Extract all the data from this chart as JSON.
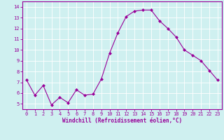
{
  "x": [
    0,
    1,
    2,
    3,
    4,
    5,
    6,
    7,
    8,
    9,
    10,
    11,
    12,
    13,
    14,
    15,
    16,
    17,
    18,
    19,
    20,
    21,
    22,
    23
  ],
  "y": [
    7.2,
    5.8,
    6.7,
    4.9,
    5.6,
    5.1,
    6.3,
    5.8,
    5.9,
    7.3,
    9.7,
    11.6,
    13.1,
    13.6,
    13.7,
    13.7,
    12.7,
    12.0,
    11.2,
    10.0,
    9.5,
    9.0,
    8.1,
    7.2
  ],
  "line_color": "#990099",
  "marker": "D",
  "marker_size": 2.0,
  "xlabel": "Windchill (Refroidissement éolien,°C)",
  "xlabel_color": "#990099",
  "bg_color": "#cff0f0",
  "grid_color": "#ffffff",
  "tick_color": "#990099",
  "spine_color": "#990099",
  "xlim": [
    -0.5,
    23.5
  ],
  "ylim": [
    4.5,
    14.5
  ],
  "yticks": [
    5,
    6,
    7,
    8,
    9,
    10,
    11,
    12,
    13,
    14
  ],
  "xticks": [
    0,
    1,
    2,
    3,
    4,
    5,
    6,
    7,
    8,
    9,
    10,
    11,
    12,
    13,
    14,
    15,
    16,
    17,
    18,
    19,
    20,
    21,
    22,
    23
  ],
  "tick_fontsize": 5.0,
  "xlabel_fontsize": 5.5
}
